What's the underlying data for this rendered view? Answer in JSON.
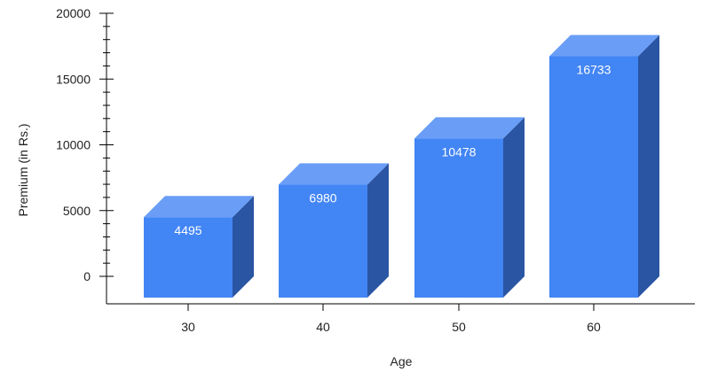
{
  "chart_data": {
    "type": "bar",
    "categories": [
      "30",
      "40",
      "50",
      "60"
    ],
    "values": [
      4495,
      6980,
      10478,
      16733
    ],
    "data_labels": [
      "4495",
      "6980",
      "10478",
      "16733"
    ],
    "xlabel": "Age",
    "ylabel": "Premium (in Rs.)",
    "ylim": [
      0,
      20000
    ],
    "y_ticks": [
      0,
      5000,
      10000,
      15000,
      20000
    ],
    "y_tick_labels": [
      "0",
      "5000",
      "10000",
      "15000",
      "20000"
    ],
    "grid": false,
    "legend": "none",
    "style": "3d-bar",
    "colors": {
      "front": "#4285f4",
      "top": "#6a9ef6",
      "side": "#2a55a3",
      "axis": "#000000"
    }
  }
}
